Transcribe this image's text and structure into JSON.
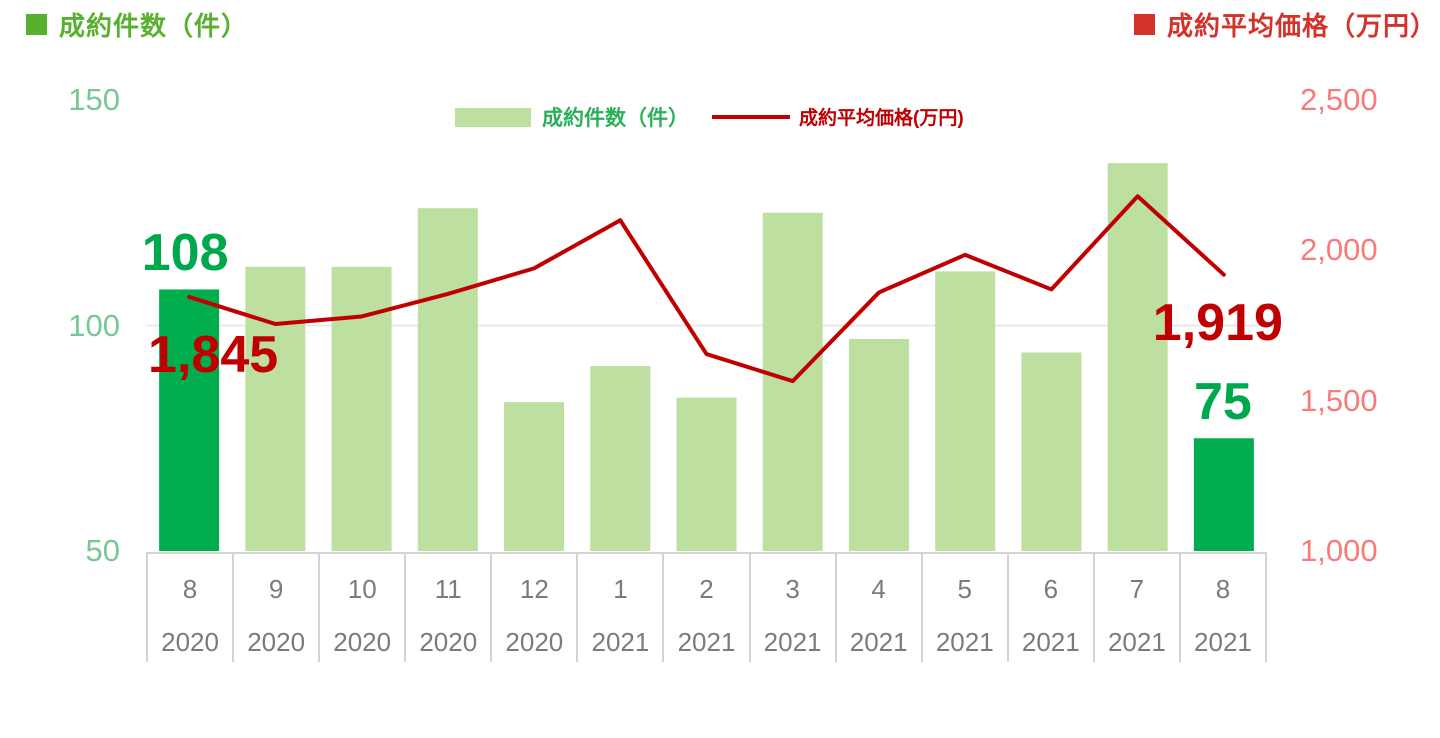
{
  "titles": {
    "left": "成約件数（件）",
    "right": "成約平均価格（万円）"
  },
  "legend": {
    "count_label": "成約件数（件）",
    "price_label": "成約平均価格(万円)"
  },
  "colors": {
    "title_green": "#58B02F",
    "title_red": "#D4332C",
    "bar_light": "#BDDFA0",
    "bar_dark": "#00AE4E",
    "line_red": "#C00000",
    "label_green": "#00A84D",
    "label_red": "#C00000",
    "legend_green": "#2BB05A",
    "axis_left_green": "#76C894",
    "axis_right_salmon": "#F97B79",
    "x_label_gray": "#7B7B7B",
    "table_border": "#D4D2D2",
    "gridline": "#E4E4E4"
  },
  "chart_data": {
    "type": "bar",
    "subtype": "combo-bar-line-dual-axis",
    "categories": {
      "months": [
        "8",
        "9",
        "10",
        "11",
        "12",
        "1",
        "2",
        "3",
        "4",
        "5",
        "6",
        "7",
        "8"
      ],
      "years": [
        "2020",
        "2020",
        "2020",
        "2020",
        "2020",
        "2021",
        "2021",
        "2021",
        "2021",
        "2021",
        "2021",
        "2021",
        "2021"
      ]
    },
    "series": [
      {
        "name": "成約件数（件）",
        "chart_type": "bar",
        "axis": "left",
        "values": [
          108,
          113,
          113,
          126,
          83,
          91,
          84,
          125,
          97,
          112,
          94,
          136,
          75
        ],
        "highlighted_indexes": [
          0,
          12
        ]
      },
      {
        "name": "成約平均価格(万円)",
        "chart_type": "line",
        "axis": "right",
        "values": [
          1845,
          1755,
          1780,
          1855,
          1940,
          2100,
          1655,
          1565,
          1860,
          1985,
          1870,
          2180,
          1919
        ]
      }
    ],
    "left_axis": {
      "title": "成約件数（件）",
      "min": 50,
      "max": 150,
      "ticks": [
        150,
        100,
        50
      ],
      "tick_labels": [
        "150",
        "100",
        "50"
      ],
      "gridlines": [
        100
      ]
    },
    "right_axis": {
      "title": "成約平均価格（万円）",
      "min": 1000,
      "max": 2500,
      "ticks": [
        2500,
        2000,
        1500,
        1000
      ],
      "tick_labels": [
        "2,500",
        "2,000",
        "1,500",
        "1,000"
      ]
    },
    "data_labels": {
      "counts": [
        {
          "index": 0,
          "text": "108"
        },
        {
          "index": 12,
          "text": "75"
        }
      ],
      "prices": [
        {
          "index": 0,
          "text": "1,845"
        },
        {
          "index": 12,
          "text": "1,919"
        }
      ]
    },
    "legend_position": "top-center",
    "grid": "single horizontal gridline at left-axis 100"
  }
}
